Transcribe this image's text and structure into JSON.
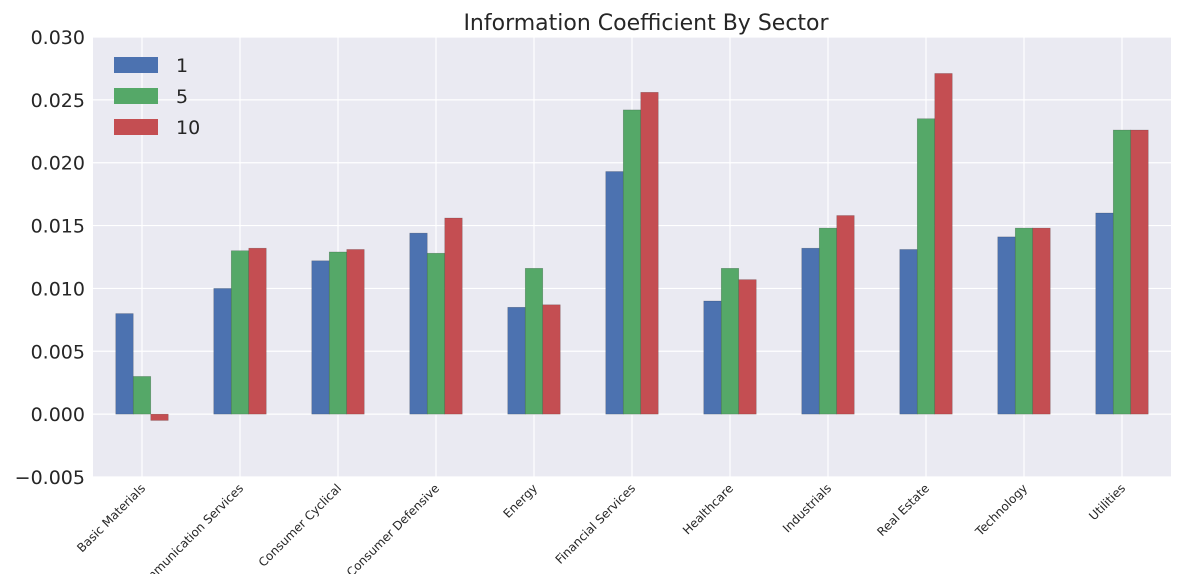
{
  "chart_data": {
    "type": "bar",
    "title": "Information Coefficient By Sector",
    "xlabel": "",
    "ylabel": "",
    "categories": [
      "Basic Materials",
      "Communication Services",
      "Consumer Cyclical",
      "Consumer Defensive",
      "Energy",
      "Financial Services",
      "Healthcare",
      "Industrials",
      "Real Estate",
      "Technology",
      "Utilities"
    ],
    "series": [
      {
        "name": "1",
        "color": "#4c72b0",
        "values": [
          0.008,
          0.01,
          0.0122,
          0.0144,
          0.0085,
          0.0193,
          0.009,
          0.0132,
          0.0131,
          0.0141,
          0.016
        ]
      },
      {
        "name": "5",
        "color": "#55a868",
        "values": [
          0.003,
          0.013,
          0.0129,
          0.0128,
          0.0116,
          0.0242,
          0.0116,
          0.0148,
          0.0235,
          0.0148,
          0.0226
        ]
      },
      {
        "name": "10",
        "color": "#c44e52",
        "values": [
          -0.0005,
          0.0132,
          0.0131,
          0.0156,
          0.0087,
          0.0256,
          0.0107,
          0.0158,
          0.0271,
          0.0148,
          0.0226
        ]
      }
    ],
    "ylim": [
      -0.005,
      0.03
    ],
    "yticks": [
      "0.030",
      "0.025",
      "0.020",
      "0.015",
      "0.010",
      "0.005",
      "0.000",
      "−0.005"
    ],
    "grid": true,
    "legend_position": "top-left",
    "background_color": "#eaeaf2"
  }
}
